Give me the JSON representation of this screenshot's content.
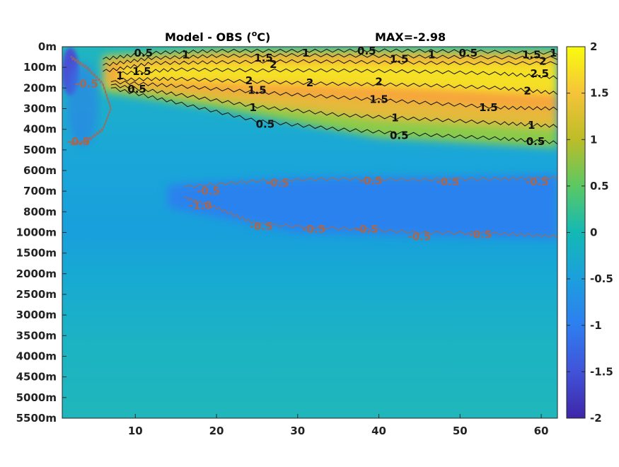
{
  "chart_data": {
    "type": "heatmap",
    "title": "Model - OBS (°C)",
    "title_main": "Model - OBS (",
    "title_sup": "o",
    "title_unit": "C)",
    "max_label": "MAX=-2.98",
    "x": {
      "ticks": [
        10,
        20,
        30,
        40,
        50,
        60
      ],
      "lim": [
        1,
        62
      ]
    },
    "y": {
      "ticks": [
        "0m",
        "100m",
        "200m",
        "300m",
        "400m",
        "500m",
        "600m",
        "700m",
        "800m",
        "1000m",
        "1500m",
        "2000m",
        "2500m",
        "3000m",
        "3500m",
        "4000m",
        "4500m",
        "5000m",
        "5500m"
      ]
    },
    "colorbar": {
      "ticks": [
        "2",
        "1.5",
        "1",
        "0.5",
        "0",
        "-0.5",
        "-1",
        "-1.5",
        "-2"
      ],
      "clim": [
        -2,
        2
      ]
    },
    "contour_labels": [
      {
        "text": "0.5",
        "level": 0.5,
        "x": 11.0,
        "d": 0.3
      },
      {
        "text": "1",
        "level": 1,
        "x": 16.2,
        "d": 0.4
      },
      {
        "text": "1.5",
        "level": 1.5,
        "x": 25.8,
        "d": 0.55
      },
      {
        "text": "2",
        "level": 2,
        "x": 27.0,
        "d": 0.85
      },
      {
        "text": "1",
        "level": 1,
        "x": 31.0,
        "d": 0.3
      },
      {
        "text": "0.5",
        "level": 0.5,
        "x": 38.5,
        "d": 0.2
      },
      {
        "text": "1.5",
        "level": 1.5,
        "x": 42.5,
        "d": 0.6
      },
      {
        "text": "1",
        "level": 1,
        "x": 46.5,
        "d": 0.4
      },
      {
        "text": "0.5",
        "level": 0.5,
        "x": 51.0,
        "d": 0.3
      },
      {
        "text": "1.5",
        "level": 1.5,
        "x": 58.8,
        "d": 0.4
      },
      {
        "text": "2",
        "level": 2,
        "x": 60.2,
        "d": 0.7
      },
      {
        "text": "1",
        "level": 1,
        "x": 61.5,
        "d": 0.3
      },
      {
        "text": "2.5",
        "level": 2.5,
        "x": 59.8,
        "d": 1.3
      },
      {
        "text": "1",
        "level": 1,
        "x": 8.1,
        "d": 1.4
      },
      {
        "text": "1.5",
        "level": 1.5,
        "x": 10.8,
        "d": 1.2
      },
      {
        "text": "2",
        "level": 2,
        "x": 24.0,
        "d": 1.65
      },
      {
        "text": "2",
        "level": 2,
        "x": 31.5,
        "d": 1.75
      },
      {
        "text": "2",
        "level": 2,
        "x": 40.0,
        "d": 1.7
      },
      {
        "text": "2",
        "level": 2,
        "x": 58.3,
        "d": 2.15
      },
      {
        "text": "1.5",
        "level": 1.5,
        "x": 25.0,
        "d": 2.1
      },
      {
        "text": "1.5",
        "level": 1.5,
        "x": 40.0,
        "d": 2.55
      },
      {
        "text": "1.5",
        "level": 1.5,
        "x": 53.5,
        "d": 2.95
      },
      {
        "text": "0.5",
        "level": 0.5,
        "x": 10.2,
        "d": 2.05
      },
      {
        "text": "1",
        "level": 1,
        "x": 24.5,
        "d": 2.95
      },
      {
        "text": "1",
        "level": 1,
        "x": 42.0,
        "d": 3.45
      },
      {
        "text": "1",
        "level": 1,
        "x": 58.8,
        "d": 3.8
      },
      {
        "text": "0.5",
        "level": 0.5,
        "x": 26.0,
        "d": 3.75
      },
      {
        "text": "0.5",
        "level": 0.5,
        "x": 42.5,
        "d": 4.3
      },
      {
        "text": "0.5",
        "level": 0.5,
        "x": 59.3,
        "d": 4.6
      },
      {
        "text": "-0.5",
        "level": -0.5,
        "x": 4.0,
        "d": 1.8
      },
      {
        "text": "-0.5",
        "level": -0.5,
        "x": 3.0,
        "d": 4.6
      },
      {
        "text": "-0.5",
        "level": -0.5,
        "x": 27.5,
        "d": 6.6
      },
      {
        "text": "-0.5",
        "level": -0.5,
        "x": 39.0,
        "d": 6.5
      },
      {
        "text": "-0.5",
        "level": -0.5,
        "x": 48.5,
        "d": 6.55
      },
      {
        "text": "-0.5",
        "level": -0.5,
        "x": 59.5,
        "d": 6.55
      },
      {
        "text": "-0.5",
        "level": -0.5,
        "x": 25.5,
        "d": 8.7
      },
      {
        "text": "-0.5",
        "level": -0.5,
        "x": 32.0,
        "d": 8.85
      },
      {
        "text": "-0.5",
        "level": -0.5,
        "x": 38.5,
        "d": 8.85
      },
      {
        "text": "-0.5",
        "level": -0.5,
        "x": 45.0,
        "d": 9.2
      },
      {
        "text": "-0.5",
        "level": -0.5,
        "x": 52.5,
        "d": 9.1
      },
      {
        "text": "-0.5",
        "level": -0.5,
        "x": 19.0,
        "d": 7.0
      },
      {
        "text": "-1.0",
        "level": -1,
        "x": 18.0,
        "d": 7.7
      }
    ],
    "contour_lines": [
      {
        "level": 0.5,
        "points": [
          [
            6,
            0.6
          ],
          [
            12,
            0.3
          ],
          [
            20,
            0.2
          ],
          [
            30,
            0.2
          ],
          [
            40,
            0.18
          ],
          [
            50,
            0.22
          ],
          [
            62,
            0.3
          ]
        ]
      },
      {
        "level": 1,
        "points": [
          [
            6,
            0.9
          ],
          [
            12,
            0.55
          ],
          [
            20,
            0.45
          ],
          [
            30,
            0.4
          ],
          [
            40,
            0.45
          ],
          [
            50,
            0.5
          ],
          [
            62,
            0.55
          ]
        ]
      },
      {
        "level": 1.5,
        "points": [
          [
            6,
            1.2
          ],
          [
            12,
            0.8
          ],
          [
            20,
            0.75
          ],
          [
            30,
            0.7
          ],
          [
            40,
            0.75
          ],
          [
            50,
            0.8
          ],
          [
            62,
            0.8
          ]
        ]
      },
      {
        "level": 2,
        "points": [
          [
            8,
            1.3
          ],
          [
            15,
            1.1
          ],
          [
            25,
            1.15
          ],
          [
            35,
            1.15
          ],
          [
            45,
            1.2
          ],
          [
            55,
            1.3
          ],
          [
            62,
            1.5
          ]
        ]
      },
      {
        "level": 2,
        "points": [
          [
            8,
            1.6
          ],
          [
            15,
            1.55
          ],
          [
            25,
            1.7
          ],
          [
            35,
            1.8
          ],
          [
            45,
            1.85
          ],
          [
            55,
            2.0
          ],
          [
            62,
            2.25
          ]
        ]
      },
      {
        "level": 1.5,
        "points": [
          [
            7,
            1.7
          ],
          [
            15,
            1.9
          ],
          [
            25,
            2.2
          ],
          [
            35,
            2.45
          ],
          [
            45,
            2.7
          ],
          [
            55,
            2.95
          ],
          [
            62,
            3.0
          ]
        ]
      },
      {
        "level": 1,
        "points": [
          [
            7,
            1.85
          ],
          [
            15,
            2.3
          ],
          [
            25,
            2.9
          ],
          [
            35,
            3.3
          ],
          [
            45,
            3.5
          ],
          [
            55,
            3.7
          ],
          [
            62,
            3.85
          ]
        ]
      },
      {
        "level": 0.5,
        "points": [
          [
            7,
            2.0
          ],
          [
            15,
            2.7
          ],
          [
            25,
            3.6
          ],
          [
            35,
            4.0
          ],
          [
            45,
            4.25
          ],
          [
            55,
            4.45
          ],
          [
            62,
            4.65
          ]
        ]
      },
      {
        "level": -0.5,
        "points": [
          [
            16,
            6.8
          ],
          [
            25,
            6.5
          ],
          [
            35,
            6.4
          ],
          [
            45,
            6.45
          ],
          [
            55,
            6.4
          ],
          [
            62,
            6.35
          ]
        ]
      },
      {
        "level": -0.5,
        "points": [
          [
            16,
            7.3
          ],
          [
            20,
            7.8
          ],
          [
            25,
            8.6
          ],
          [
            35,
            8.8
          ],
          [
            45,
            9.0
          ],
          [
            55,
            9.05
          ],
          [
            62,
            9.2
          ]
        ]
      },
      {
        "level": -0.5,
        "points": [
          [
            2,
            0.5
          ],
          [
            4,
            1.0
          ],
          [
            6,
            1.8
          ],
          [
            7,
            3.0
          ],
          [
            6,
            4.0
          ],
          [
            4,
            4.6
          ],
          [
            2,
            4.7
          ]
        ]
      }
    ]
  }
}
